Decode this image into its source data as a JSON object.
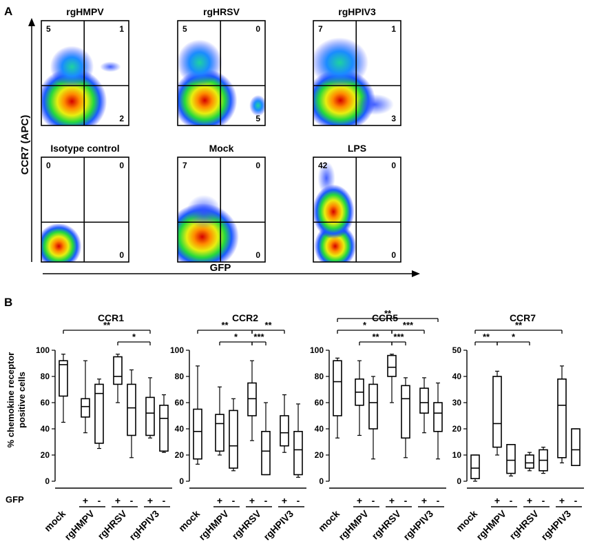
{
  "panel_a": {
    "letter": "A",
    "y_axis_label": "CCR7 (APC)",
    "x_axis_label": "GFP",
    "plots": [
      {
        "title": "rgHMPV",
        "quadrants": {
          "ul": "5",
          "ur": "1",
          "lr": "2",
          "ll": ""
        }
      },
      {
        "title": "rgHRSV",
        "quadrants": {
          "ul": "5",
          "ur": "0",
          "lr": "5",
          "ll": ""
        }
      },
      {
        "title": "rgHPIV3",
        "quadrants": {
          "ul": "7",
          "ur": "1",
          "lr": "3",
          "ll": ""
        }
      },
      {
        "title": "Isotype control",
        "quadrants": {
          "ul": "0",
          "ur": "0",
          "lr": "0",
          "ll": ""
        }
      },
      {
        "title": "Mock",
        "quadrants": {
          "ul": "7",
          "ur": "0",
          "lr": "0",
          "ll": ""
        }
      },
      {
        "title": "LPS",
        "quadrants": {
          "ul": "42",
          "ur": "0",
          "lr": "0",
          "ll": ""
        }
      }
    ]
  },
  "panel_b": {
    "letter": "B",
    "y_axis_label_line1": "% chemokine receptor",
    "y_axis_label_line2": "positive cells",
    "gfp_label": "GFP",
    "plus": "+",
    "minus": "-",
    "groups": [
      "mock",
      "rgHMPV",
      "rgHRSV",
      "rgHPIV3"
    ]
  },
  "chart_data": [
    {
      "type": "box",
      "title": "CCR1",
      "ylim": [
        0,
        100
      ],
      "yticks": [
        0,
        20,
        40,
        60,
        80,
        100
      ],
      "boxes": [
        {
          "group": "mock",
          "gfp": "",
          "min": 45,
          "q1": 65,
          "median": 89,
          "q3": 92,
          "max": 97
        },
        {
          "group": "rgHMPV",
          "gfp": "+",
          "min": 37,
          "q1": 49,
          "median": 57,
          "q3": 63,
          "max": 92
        },
        {
          "group": "rgHMPV",
          "gfp": "-",
          "min": 25,
          "q1": 29,
          "median": 67,
          "q3": 74,
          "max": 78
        },
        {
          "group": "rgHRSV",
          "gfp": "+",
          "min": 60,
          "q1": 74,
          "median": 80,
          "q3": 95,
          "max": 97
        },
        {
          "group": "rgHRSV",
          "gfp": "-",
          "min": 18,
          "q1": 35,
          "median": 56,
          "q3": 74,
          "max": 85
        },
        {
          "group": "rgHPIV3",
          "gfp": "+",
          "min": 33,
          "q1": 35,
          "median": 52,
          "q3": 64,
          "max": 79
        },
        {
          "group": "rgHPIV3",
          "gfp": "-",
          "min": 22,
          "q1": 23,
          "median": 48,
          "q3": 58,
          "max": 66
        }
      ],
      "significance": [
        {
          "from": 0,
          "to": 5,
          "label": "**",
          "level": 1
        },
        {
          "from": 3,
          "to": 5,
          "label": "*",
          "level": 0
        }
      ]
    },
    {
      "type": "box",
      "title": "CCR2",
      "ylim": [
        0,
        100
      ],
      "yticks": [
        0,
        20,
        40,
        60,
        80,
        100
      ],
      "boxes": [
        {
          "group": "mock",
          "gfp": "",
          "min": 13,
          "q1": 17,
          "median": 38,
          "q3": 55,
          "max": 88
        },
        {
          "group": "rgHMPV",
          "gfp": "+",
          "min": 20,
          "q1": 23,
          "median": 44,
          "q3": 51,
          "max": 72
        },
        {
          "group": "rgHMPV",
          "gfp": "-",
          "min": 8,
          "q1": 10,
          "median": 27,
          "q3": 54,
          "max": 63
        },
        {
          "group": "rgHRSV",
          "gfp": "+",
          "min": 31,
          "q1": 50,
          "median": 63,
          "q3": 75,
          "max": 92
        },
        {
          "group": "rgHRSV",
          "gfp": "-",
          "min": 5,
          "q1": 5,
          "median": 23,
          "q3": 38,
          "max": 60
        },
        {
          "group": "rgHPIV3",
          "gfp": "+",
          "min": 22,
          "q1": 27,
          "median": 37,
          "q3": 50,
          "max": 66
        },
        {
          "group": "rgHPIV3",
          "gfp": "-",
          "min": 3,
          "q1": 5,
          "median": 24,
          "q3": 38,
          "max": 59
        }
      ],
      "significance": [
        {
          "from": 0,
          "to": 3,
          "label": "**",
          "level": 1
        },
        {
          "from": 1,
          "to": 3,
          "label": "*",
          "level": 0
        },
        {
          "from": 3,
          "to": 4,
          "label": "***",
          "level": 0
        },
        {
          "from": 3,
          "to": 5,
          "label": "**",
          "level": 1
        }
      ]
    },
    {
      "type": "box",
      "title": "CCR5",
      "ylim": [
        0,
        100
      ],
      "yticks": [
        0,
        20,
        40,
        60,
        80,
        100
      ],
      "boxes": [
        {
          "group": "mock",
          "gfp": "",
          "min": 33,
          "q1": 50,
          "median": 76,
          "q3": 92,
          "max": 94
        },
        {
          "group": "rgHMPV",
          "gfp": "+",
          "min": 35,
          "q1": 58,
          "median": 68,
          "q3": 78,
          "max": 92
        },
        {
          "group": "rgHMPV",
          "gfp": "-",
          "min": 17,
          "q1": 40,
          "median": 60,
          "q3": 74,
          "max": 80
        },
        {
          "group": "rgHRSV",
          "gfp": "+",
          "min": 60,
          "q1": 80,
          "median": 87,
          "q3": 96,
          "max": 97
        },
        {
          "group": "rgHRSV",
          "gfp": "-",
          "min": 18,
          "q1": 33,
          "median": 63,
          "q3": 73,
          "max": 79
        },
        {
          "group": "rgHPIV3",
          "gfp": "+",
          "min": 37,
          "q1": 52,
          "median": 60,
          "q3": 71,
          "max": 79
        },
        {
          "group": "rgHPIV3",
          "gfp": "-",
          "min": 17,
          "q1": 38,
          "median": 52,
          "q3": 60,
          "max": 75
        }
      ],
      "significance": [
        {
          "from": 0,
          "to": 6,
          "label": "**",
          "level": 2
        },
        {
          "from": 0,
          "to": 3,
          "label": "*",
          "level": 1
        },
        {
          "from": 1,
          "to": 3,
          "label": "**",
          "level": 0
        },
        {
          "from": 3,
          "to": 4,
          "label": "***",
          "level": 0
        },
        {
          "from": 3,
          "to": 5,
          "label": "***",
          "level": 1
        }
      ]
    },
    {
      "type": "box",
      "title": "CCR7",
      "ylim": [
        0,
        50
      ],
      "yticks": [
        0,
        10,
        20,
        30,
        40,
        50
      ],
      "boxes": [
        {
          "group": "mock",
          "gfp": "",
          "min": 0,
          "q1": 1,
          "median": 5,
          "q3": 10,
          "max": 10
        },
        {
          "group": "rgHMPV",
          "gfp": "+",
          "min": 10,
          "q1": 13,
          "median": 22,
          "q3": 40,
          "max": 42
        },
        {
          "group": "rgHMPV",
          "gfp": "-",
          "min": 2,
          "q1": 3,
          "median": 8,
          "q3": 14,
          "max": 14
        },
        {
          "group": "rgHRSV",
          "gfp": "+",
          "min": 4,
          "q1": 5,
          "median": 7,
          "q3": 10,
          "max": 11
        },
        {
          "group": "rgHRSV",
          "gfp": "-",
          "min": 3,
          "q1": 4,
          "median": 8,
          "q3": 12,
          "max": 13
        },
        {
          "group": "rgHPIV3",
          "gfp": "+",
          "min": 7,
          "q1": 9,
          "median": 29,
          "q3": 39,
          "max": 44
        },
        {
          "group": "rgHPIV3",
          "gfp": "-",
          "min": 6,
          "q1": 6,
          "median": 12,
          "q3": 20,
          "max": 20
        }
      ],
      "significance": [
        {
          "from": 0,
          "to": 5,
          "label": "**",
          "level": 1
        },
        {
          "from": 0,
          "to": 1,
          "label": "**",
          "level": 0
        },
        {
          "from": 1,
          "to": 3,
          "label": "*",
          "level": 0
        }
      ]
    }
  ]
}
